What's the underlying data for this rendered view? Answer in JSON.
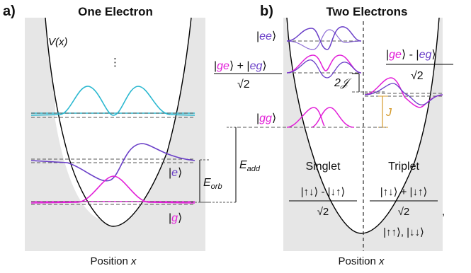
{
  "panel_a": {
    "letter": "a)",
    "title": "One Electron",
    "potential_label": "V(x)",
    "ellipsis": "⋮",
    "ket_e": "e",
    "ket_g": "g",
    "energy_label_main": "E",
    "energy_label_sub": "orb",
    "xlabel": "Position x"
  },
  "panel_b": {
    "letter": "b)",
    "title": "Two Electrons",
    "ket_ee": "ee",
    "ket_gg": "gg",
    "singlet_num_g": "ge",
    "singlet_num_e": "eg",
    "triplet_num_g": "ge",
    "triplet_num_e": "eg",
    "sqrt2": "√2",
    "exchange_label": "2𝒥",
    "j_label": "J",
    "add_label_main": "E",
    "add_label_sub": "add",
    "singlet_title": "Singlet",
    "triplet_title": "Triplet",
    "singlet_spin_num": "|↑↓⟩ - |↓↑⟩",
    "triplet_spin_num": "|↑↓⟩ + |↓↑⟩",
    "triplet_extra": "|↑↑⟩,  |↓↓⟩",
    "comma": ",",
    "xlabel": "Position x"
  },
  "colors": {
    "cyan": "#2bb8d0",
    "purple": "#6a3fc8",
    "magenta": "#e21fd8",
    "orange": "#d49a2a",
    "shade": "#e6e6e6"
  }
}
